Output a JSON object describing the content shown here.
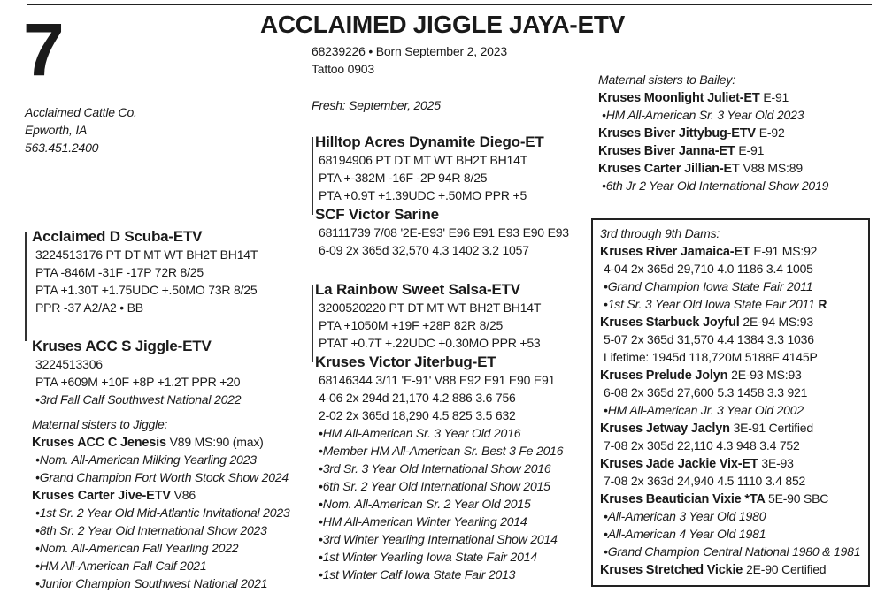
{
  "lot_number": "7",
  "title": "ACCLAIMED JIGGLE JAYA-ETV",
  "info": [
    "68239226  •  Born September 2, 2023",
    "Tattoo 0903"
  ],
  "fresh": "Fresh:  September, 2025",
  "consignor": [
    "Acclaimed Cattle Co.",
    "Epworth, IA",
    "563.451.2400"
  ],
  "sire": [
    {
      "kind": "name",
      "text": "Acclaimed D Scuba-ETV"
    },
    {
      "kind": "stat",
      "text": "3224513176  PT DT MT WT  BH2T BH14T"
    },
    {
      "kind": "stat",
      "text": "PTA -846M -31F -17P 72R 8/25"
    },
    {
      "kind": "stat",
      "text": "PTA +1.30T +1.75UDC +.50MO 73R 8/25"
    },
    {
      "kind": "stat",
      "text": "PPR -37  A2/A2  •  BB"
    }
  ],
  "dam": [
    {
      "kind": "name",
      "text": "Kruses ACC S Jiggle-ETV"
    },
    {
      "kind": "stat",
      "text": "3224513306"
    },
    {
      "kind": "stat",
      "text": "PTA +609M +10F +8P +1.2T PPR +20"
    },
    {
      "kind": "award",
      "text": "•3rd Fall Calf Southwest National 2022"
    }
  ],
  "dam_sisters": [
    {
      "kind": "head",
      "text": "Maternal sisters to Jiggle:"
    },
    {
      "kind": "subname",
      "text": "Kruses ACC C Jenesis",
      "extra": "V89 MS:90 (max)"
    },
    {
      "kind": "award",
      "text": "•Nom. All-American Milking Yearling 2023"
    },
    {
      "kind": "award",
      "text": "•Grand Champion Fort Worth Stock Show 2024"
    },
    {
      "kind": "subname",
      "text": "Kruses Carter Jive-ETV",
      "extra": "V86"
    },
    {
      "kind": "award",
      "text": "•1st Sr. 2 Year Old Mid-Atlantic Invitational 2023"
    },
    {
      "kind": "award",
      "text": "•8th Sr. 2 Year Old International Show 2023"
    },
    {
      "kind": "award",
      "text": "•Nom. All-American Fall Yearling 2022"
    },
    {
      "kind": "award",
      "text": "•HM All-American Fall Calf 2021"
    },
    {
      "kind": "award",
      "text": "•Junior Champion Southwest National 2021"
    }
  ],
  "sire_sire": [
    {
      "kind": "name",
      "text": "Hilltop Acres Dynamite Diego-ET"
    },
    {
      "kind": "stat",
      "text": "68194906  PT DT MT WT BH2T BH14T"
    },
    {
      "kind": "stat",
      "text": "PTA +-382M -16F -2P 94R 8/25"
    },
    {
      "kind": "stat",
      "text": "PTA +0.9T +1.39UDC +.50MO PPR +5"
    }
  ],
  "sire_dam": [
    {
      "kind": "name",
      "text": "SCF Victor Sarine"
    },
    {
      "kind": "stat",
      "text": "68111739  7/08  '2E-E93'  E96 E91 E93 E90 E93"
    },
    {
      "kind": "stat",
      "text": "6-09  2x  365d  32,570  4.3  1402  3.2  1057"
    }
  ],
  "dam_sire": [
    {
      "kind": "name",
      "text": "La Rainbow Sweet Salsa-ETV"
    },
    {
      "kind": "stat",
      "text": "3200520220 PT DT MT WT  BH2T BH14T"
    },
    {
      "kind": "stat",
      "text": "PTA +1050M +19F +28P 82R 8/25"
    },
    {
      "kind": "stat",
      "text": "PTAT +0.7T +.22UDC +0.30MO PPR +53"
    }
  ],
  "dam_dam": [
    {
      "kind": "name",
      "text": "Kruses Victor Jiterbug-ET"
    },
    {
      "kind": "stat",
      "text": "68146344  3/11  'E-91'  V88 E92 E91 E90 E91"
    },
    {
      "kind": "stat",
      "text": "4-06  2x  294d  21,170  4.2  886  3.6 756"
    },
    {
      "kind": "stat",
      "text": "2-02  2x  365d  18,290  4.5  825  3.5  632"
    },
    {
      "kind": "award",
      "text": "•HM All-American Sr. 3 Year Old 2016"
    },
    {
      "kind": "award",
      "text": "•Member HM All-American Sr. Best 3 Fe 2016"
    },
    {
      "kind": "award",
      "text": "•3rd Sr. 3 Year Old International Show 2016"
    },
    {
      "kind": "award",
      "text": "•6th Sr. 2 Year Old International Show 2015"
    },
    {
      "kind": "award",
      "text": "•Nom. All-American Sr. 2 Year Old 2015"
    },
    {
      "kind": "award",
      "text": "•HM All-American Winter Yearling 2014"
    },
    {
      "kind": "award",
      "text": "•3rd Winter Yearling International Show 2014"
    },
    {
      "kind": "award",
      "text": "•1st Winter Yearling Iowa State Fair 2014"
    },
    {
      "kind": "award",
      "text": "•1st Winter Calf Iowa State Fair 2013"
    }
  ],
  "bailey_sisters": [
    {
      "kind": "head",
      "text": "Maternal sisters to Bailey:"
    },
    {
      "kind": "subname",
      "text": "Kruses Moonlight Juliet-ET",
      "extra": "E-91"
    },
    {
      "kind": "award",
      "text": "•HM All-American Sr. 3 Year Old 2023"
    },
    {
      "kind": "subname",
      "text": "Kruses Biver Jittybug-ETV",
      "extra": "E-92"
    },
    {
      "kind": "subname",
      "text": "Kruses Biver Janna-ET",
      "extra": "E-91"
    },
    {
      "kind": "subname",
      "text": "Kruses Carter Jillian-ET",
      "extra": "V88 MS:89"
    },
    {
      "kind": "award",
      "text": "•6th Jr 2 Year Old International Show 2019"
    }
  ],
  "dams_3_9": [
    {
      "kind": "head",
      "text": "3rd through 9th Dams:"
    },
    {
      "kind": "subname",
      "text": "Kruses River Jamaica-ET",
      "extra": "E-91 MS:92"
    },
    {
      "kind": "stat",
      "text": "4-04  2x  365d  29,710  4.0  1186  3.4  1005"
    },
    {
      "kind": "award",
      "text": "•Grand Champion Iowa State Fair 2011"
    },
    {
      "kind": "award",
      "text": "•1st Sr. 3 Year Old Iowa State Fair 2011",
      "bold": "R"
    },
    {
      "kind": "subname",
      "text": "Kruses Starbuck Joyful",
      "extra": "2E-94 MS:93"
    },
    {
      "kind": "stat",
      "text": "5-07  2x  365d  31,570  4.4  1384  3.3  1036"
    },
    {
      "kind": "stat",
      "text": "Lifetime:  1945d  118,720M  5188F  4145P"
    },
    {
      "kind": "subname",
      "text": "Kruses Prelude Jolyn",
      "extra": "2E-93 MS:93"
    },
    {
      "kind": "stat",
      "text": "6-08  2x  365d  27,600  5.3  1458  3.3  921"
    },
    {
      "kind": "award",
      "text": "•HM All-American Jr. 3 Year Old 2002"
    },
    {
      "kind": "subname",
      "text": "Kruses Jetway Jaclyn",
      "extra": "3E-91 Certified"
    },
    {
      "kind": "stat",
      "text": "7-08  2x  305d  22,110  4.3  948  3.4  752"
    },
    {
      "kind": "subname",
      "text": "Kruses Jade Jackie Vix-ET",
      "extra": "3E-93"
    },
    {
      "kind": "stat",
      "text": "7-08  2x  363d  24,940  4.5  1110  3.4  852"
    },
    {
      "kind": "subname",
      "text": "Kruses Beautician Vixie *TA",
      "extra": "5E-90 SBC"
    },
    {
      "kind": "award",
      "text": "•All-American 3 Year Old 1980"
    },
    {
      "kind": "award",
      "text": "•All-American 4 Year Old 1981"
    },
    {
      "kind": "award",
      "text": "•Grand Champion Central National 1980 & 1981"
    },
    {
      "kind": "subname",
      "text": "Kruses Stretched Vickie",
      "extra": "2E-90 Certified"
    }
  ]
}
